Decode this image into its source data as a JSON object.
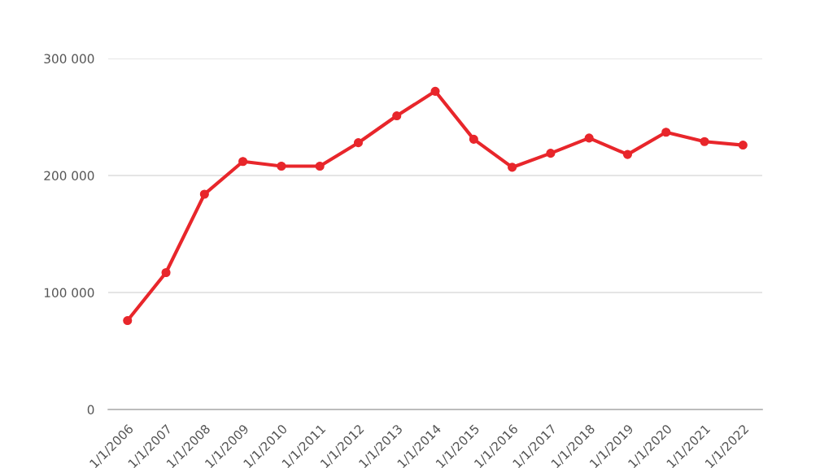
{
  "chart_data": {
    "type": "line",
    "categories": [
      "1/1/2006",
      "1/1/2007",
      "1/1/2008",
      "1/1/2009",
      "1/1/2010",
      "1/1/2011",
      "1/1/2012",
      "1/1/2013",
      "1/1/2014",
      "1/1/2015",
      "1/1/2016",
      "1/1/2017",
      "1/1/2018",
      "1/1/2019",
      "1/1/2020",
      "1/1/2021",
      "1/1/2022"
    ],
    "series": [
      {
        "color": "#e8262b",
        "values": [
          76000,
          117000,
          184000,
          212000,
          208000,
          208000,
          228000,
          251000,
          272000,
          231000,
          207000,
          219000,
          232000,
          218000,
          237000,
          229000,
          226000
        ]
      }
    ],
    "ylim": [
      0,
      300000
    ],
    "yticks": [
      {
        "value": 0,
        "label": "0"
      },
      {
        "value": 100000,
        "label": "100 000"
      },
      {
        "value": 200000,
        "label": "200 000"
      },
      {
        "value": 300000,
        "label": "300 000"
      }
    ],
    "grid": "y",
    "marker": "circle",
    "line_style": "solid"
  }
}
